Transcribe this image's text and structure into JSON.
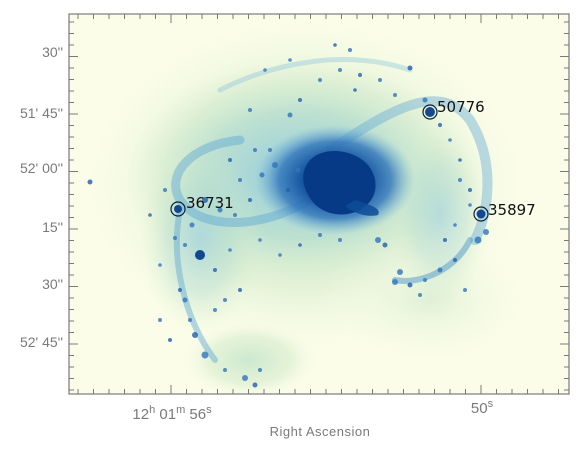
{
  "figure": {
    "x_axis_title": "Right Ascension",
    "y_ticks": [
      "30''",
      "51' 45''",
      "52' 00''",
      "15''",
      "30''",
      "52' 45''"
    ],
    "x_ticks": [
      {
        "h": "12",
        "hu": "h",
        "m": "01",
        "mu": "m",
        "s": "56",
        "su": "s"
      },
      {
        "s": "50",
        "su": "s"
      }
    ],
    "sources": [
      {
        "label": "36731"
      },
      {
        "label": "50776"
      },
      {
        "label": "35897"
      }
    ],
    "colors": {
      "background": "#fbfde9",
      "halo": "#d6eecb",
      "disk": "#b7e0cf",
      "arm": "#7fbfdb",
      "knot": "#2b6fb6",
      "core": "#0a3d8a",
      "frame": "#7a7a7a"
    }
  }
}
